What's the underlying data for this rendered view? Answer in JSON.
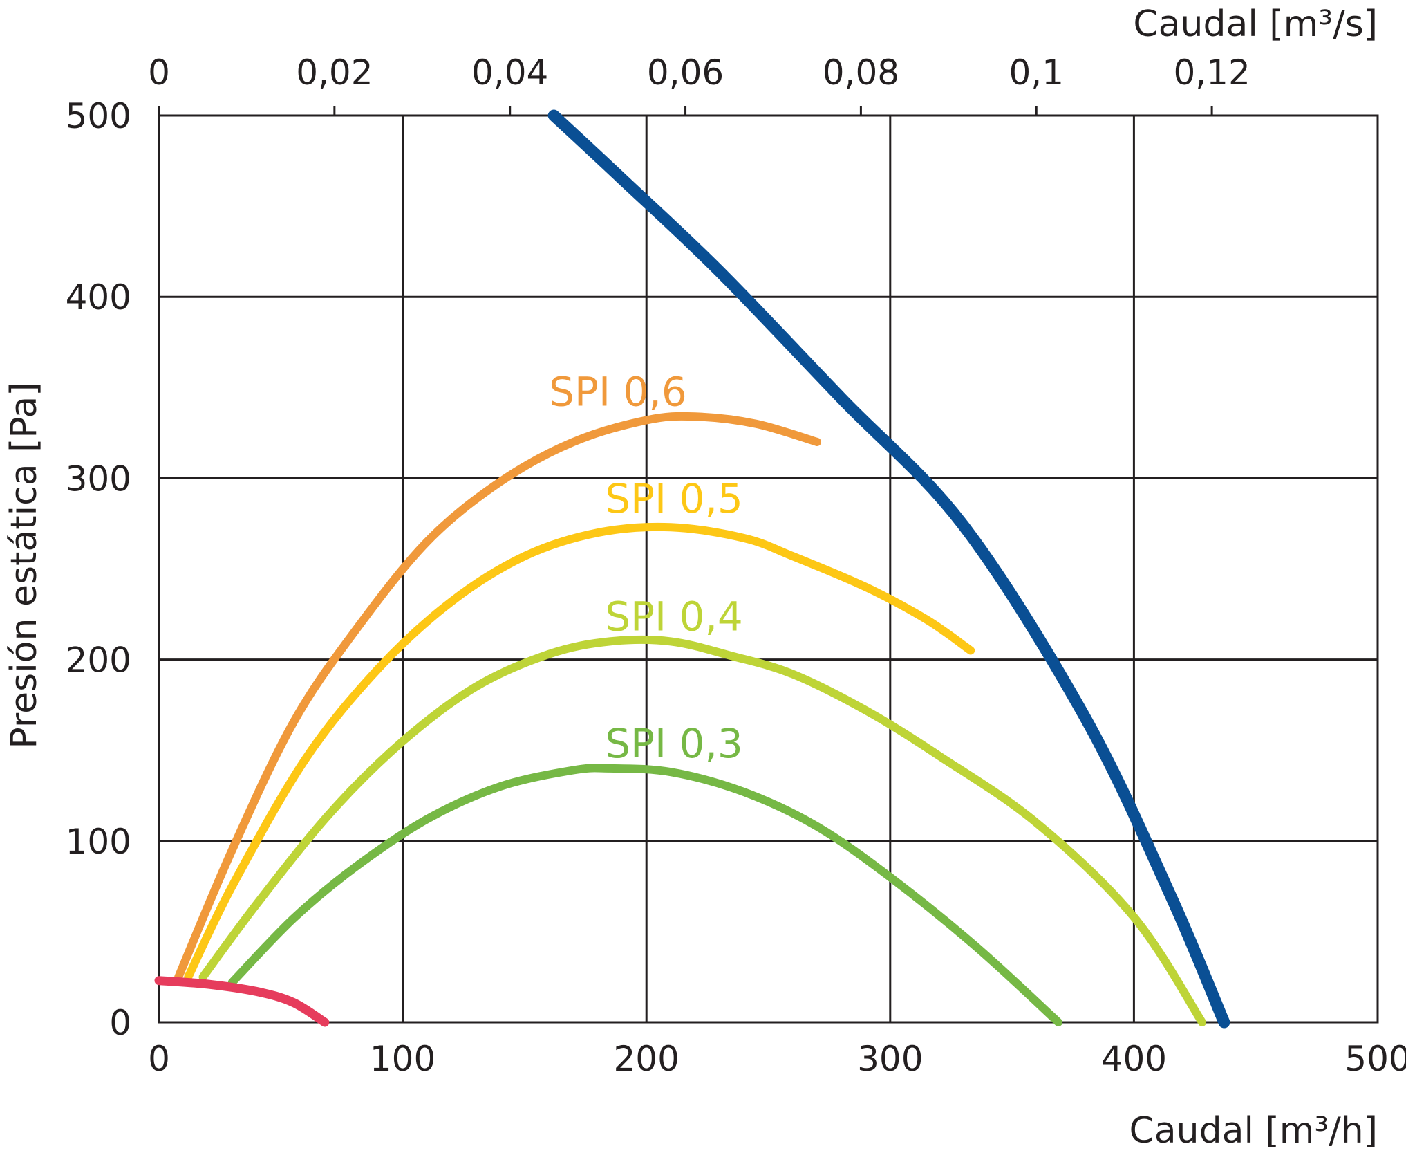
{
  "chart_data": {
    "type": "line",
    "xlabel": "Caudal [m³/h]",
    "ylabel": "Presión estática [Pa]",
    "x2label": "Caudal [m³/s]",
    "xlim": [
      0,
      500
    ],
    "ylim": [
      0,
      500
    ],
    "x2lim": [
      0,
      0.1389
    ],
    "xticks": [
      "0",
      "100",
      "200",
      "300",
      "400",
      "500"
    ],
    "yticks": [
      "0",
      "100",
      "200",
      "300",
      "400",
      "500"
    ],
    "x2ticks": [
      {
        "value": 0,
        "label": "0"
      },
      {
        "value": 0.02,
        "label": "0,02"
      },
      {
        "value": 0.04,
        "label": "0,04"
      },
      {
        "value": 0.06,
        "label": "0,06"
      },
      {
        "value": 0.08,
        "label": "0,08"
      },
      {
        "value": 0.1,
        "label": "0,1"
      },
      {
        "value": 0.12,
        "label": "0,12"
      }
    ],
    "grid": true,
    "series": [
      {
        "name": "SPI 0,6",
        "color": "#f0993b",
        "label_at": [
          160,
          340
        ],
        "points": [
          [
            8,
            25
          ],
          [
            30,
            95
          ],
          [
            55,
            165
          ],
          [
            80,
            215
          ],
          [
            110,
            265
          ],
          [
            140,
            298
          ],
          [
            170,
            320
          ],
          [
            200,
            332
          ],
          [
            220,
            334
          ],
          [
            245,
            330
          ],
          [
            270,
            320
          ]
        ]
      },
      {
        "name": "SPI 0,5",
        "color": "#fdc715",
        "label_at": [
          183,
          281
        ],
        "points": [
          [
            12,
            25
          ],
          [
            30,
            75
          ],
          [
            60,
            145
          ],
          [
            90,
            195
          ],
          [
            120,
            232
          ],
          [
            150,
            257
          ],
          [
            180,
            270
          ],
          [
            210,
            273
          ],
          [
            240,
            267
          ],
          [
            260,
            257
          ],
          [
            290,
            240
          ],
          [
            315,
            222
          ],
          [
            333,
            205
          ]
        ]
      },
      {
        "name": "SPI 0,4",
        "color": "#bed437",
        "label_at": [
          183,
          216
        ],
        "points": [
          [
            18,
            25
          ],
          [
            40,
            65
          ],
          [
            70,
            115
          ],
          [
            100,
            155
          ],
          [
            130,
            185
          ],
          [
            160,
            203
          ],
          [
            185,
            210
          ],
          [
            210,
            210
          ],
          [
            235,
            202
          ],
          [
            260,
            192
          ],
          [
            290,
            172
          ],
          [
            320,
            147
          ],
          [
            360,
            110
          ],
          [
            400,
            58
          ],
          [
            428,
            0
          ]
        ]
      },
      {
        "name": "SPI 0,3",
        "color": "#76b845",
        "label_at": [
          183,
          146
        ],
        "points": [
          [
            30,
            22
          ],
          [
            55,
            57
          ],
          [
            80,
            85
          ],
          [
            110,
            112
          ],
          [
            140,
            130
          ],
          [
            170,
            139
          ],
          [
            185,
            140
          ],
          [
            210,
            138
          ],
          [
            240,
            127
          ],
          [
            270,
            108
          ],
          [
            300,
            80
          ],
          [
            335,
            42
          ],
          [
            369,
            0
          ]
        ]
      },
      {
        "color": "#e63c5c",
        "points": [
          [
            0,
            23
          ],
          [
            20,
            21
          ],
          [
            40,
            17
          ],
          [
            55,
            11
          ],
          [
            68,
            0
          ]
        ]
      },
      {
        "color": "#0a4f94",
        "points": [
          [
            162,
            500
          ],
          [
            190,
            465
          ],
          [
            230,
            414
          ],
          [
            280,
            344
          ],
          [
            330,
            274
          ],
          [
            380,
            168
          ],
          [
            415,
            70
          ],
          [
            437,
            0
          ]
        ]
      }
    ]
  }
}
